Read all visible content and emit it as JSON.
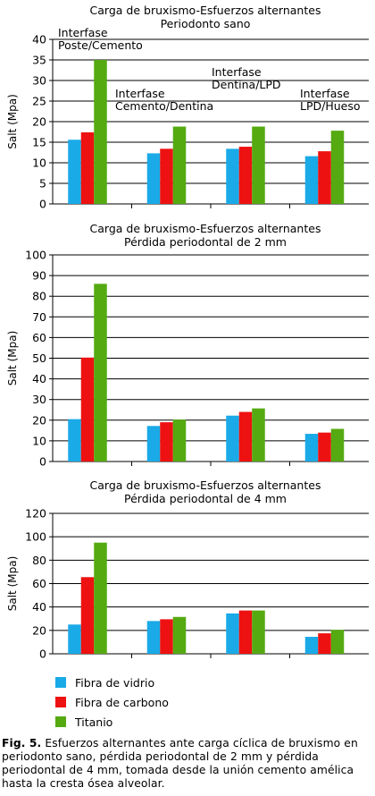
{
  "colors": {
    "fibra_vidrio": "#1aaae8",
    "fibra_carbono": "#ee1111",
    "titanio": "#55aa11"
  },
  "legend": [
    {
      "label": "Fibra de vidrio",
      "color": "#1aaae8"
    },
    {
      "label": "Fibra de carbono",
      "color": "#ee1111"
    },
    {
      "label": "Titanio",
      "color": "#55aa11"
    }
  ],
  "caption": {
    "label": "Fig. 5.",
    "text": "Esfuerzos alternantes ante carga cíclica de bruxismo en periodonto sano, pérdida periodontal de 2 mm y pérdida periodontal de 4 mm, tomada desde la unión cemento amélica hasta la cresta ósea alveolar."
  },
  "chart_data": [
    {
      "type": "bar",
      "title": "Carga de bruxismo-Esfuerzos alternantes",
      "subtitle": "Periodonto sano",
      "ylabel": "Salt (Mpa)",
      "xlabel": "",
      "ylim": [
        0,
        40
      ],
      "yticks": [
        0,
        5,
        10,
        15,
        20,
        25,
        30,
        35,
        40
      ],
      "grid": true,
      "categories": [
        "Interfase Poste/Cemento",
        "Interfase Cemento/Dentina",
        "Interfase Dentina/LPD",
        "Interfase LPD/Hueso"
      ],
      "category_labels": [
        [
          "Interfase",
          "Poste/Cemento"
        ],
        [
          "Interfase",
          "Cemento/Dentina"
        ],
        [
          "Interfase",
          "Dentina/LPD"
        ],
        [
          "Interfase",
          "LPD/Hueso"
        ]
      ],
      "series": [
        {
          "name": "Fibra de vidrio",
          "values": [
            15.6,
            12.3,
            13.4,
            11.6
          ]
        },
        {
          "name": "Fibra de carbono",
          "values": [
            17.4,
            13.4,
            13.9,
            12.8
          ]
        },
        {
          "name": "Titanio",
          "values": [
            35.0,
            18.8,
            18.8,
            17.8
          ]
        }
      ]
    },
    {
      "type": "bar",
      "title": "Carga de bruxismo-Esfuerzos alternantes",
      "subtitle": "Pérdida periodontal de 2 mm",
      "ylabel": "Salt (Mpa)",
      "xlabel": "",
      "ylim": [
        0,
        100
      ],
      "yticks": [
        0,
        10,
        20,
        30,
        40,
        50,
        60,
        70,
        80,
        90,
        100
      ],
      "grid": true,
      "categories": [
        "Interfase Poste/Cemento",
        "Interfase Cemento/Dentina",
        "Interfase Dentina/LPD",
        "Interfase LPD/Hueso"
      ],
      "series": [
        {
          "name": "Fibra de vidrio",
          "values": [
            20.5,
            17.2,
            22.2,
            13.4
          ]
        },
        {
          "name": "Fibra de carbono",
          "values": [
            50.3,
            19.0,
            24.0,
            14.0
          ]
        },
        {
          "name": "Titanio",
          "values": [
            86.0,
            20.3,
            25.7,
            15.8
          ]
        }
      ]
    },
    {
      "type": "bar",
      "title": "Carga de bruxismo-Esfuerzos alternantes",
      "subtitle": "Pérdida periodontal de 4 mm",
      "ylabel": "Salt (Mpa)",
      "xlabel": "",
      "ylim": [
        0,
        120
      ],
      "yticks": [
        0,
        20,
        40,
        60,
        80,
        100,
        120
      ],
      "grid": true,
      "categories": [
        "Interfase Poste/Cemento",
        "Interfase Cemento/Dentina",
        "Interfase Dentina/LPD",
        "Interfase LPD/Hueso"
      ],
      "series": [
        {
          "name": "Fibra de vidrio",
          "values": [
            25.0,
            28.0,
            34.5,
            14.5
          ]
        },
        {
          "name": "Fibra de carbono",
          "values": [
            65.5,
            29.5,
            37.0,
            17.5
          ]
        },
        {
          "name": "Titanio",
          "values": [
            95.0,
            31.5,
            37.0,
            20.5
          ]
        }
      ]
    }
  ]
}
